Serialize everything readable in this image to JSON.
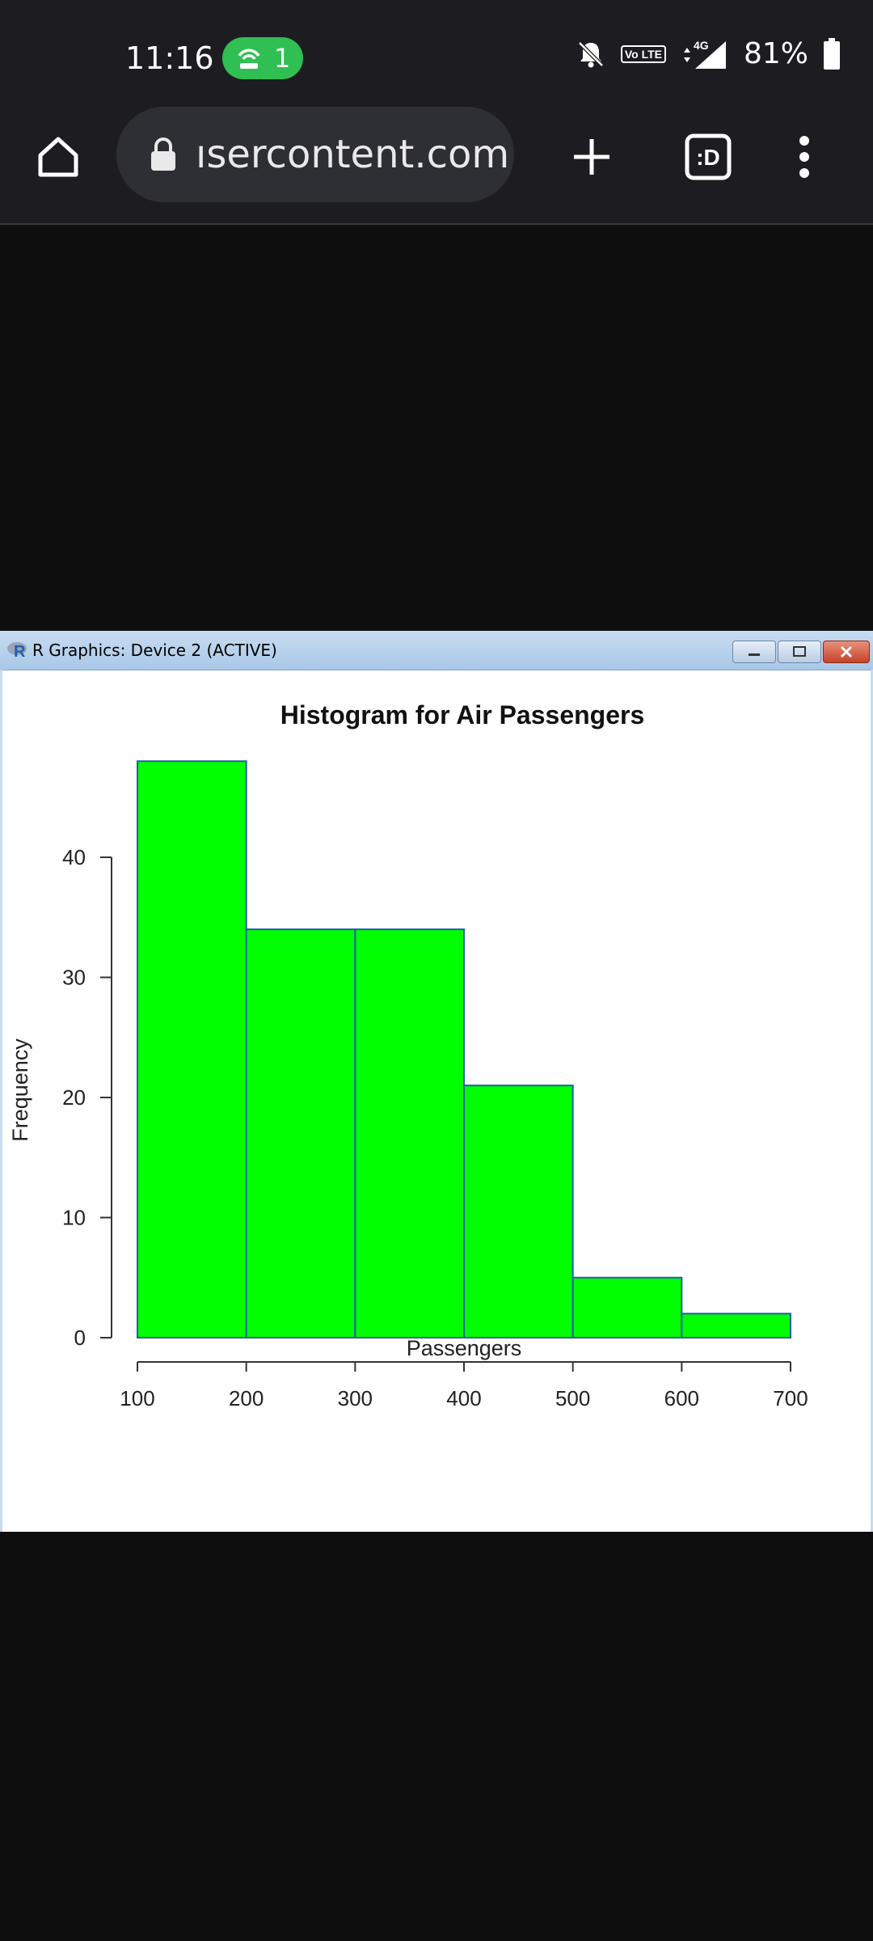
{
  "status_bar": {
    "time": "11:16",
    "hotspot_count": "1",
    "network": "4G",
    "volte": "Vo LTE",
    "battery": "81%"
  },
  "browser": {
    "url": "ısercontent.com",
    "icons": [
      "home-icon",
      "lock-icon",
      "new-tab-icon",
      "tab-switcher-icon",
      "overflow-menu-icon"
    ],
    "tab_switcher_label": ":D"
  },
  "window": {
    "title": "R Graphics: Device 2 (ACTIVE)"
  },
  "chart_data": {
    "type": "bar",
    "title": "Histogram for Air Passengers",
    "xlabel": "Passengers",
    "ylabel": "Frequency",
    "bins": [
      [
        100,
        200
      ],
      [
        200,
        300
      ],
      [
        300,
        400
      ],
      [
        400,
        500
      ],
      [
        500,
        600
      ],
      [
        600,
        700
      ]
    ],
    "values": [
      48,
      34,
      34,
      21,
      5,
      2
    ],
    "x_ticks": [
      100,
      200,
      300,
      400,
      500,
      600,
      700
    ],
    "y_ticks": [
      0,
      10,
      20,
      30,
      40
    ],
    "xlim": [
      100,
      700
    ],
    "ylim": [
      0,
      48
    ],
    "bar_fill": "#00ff00",
    "bar_border": "#1f5fae",
    "grid": false
  }
}
